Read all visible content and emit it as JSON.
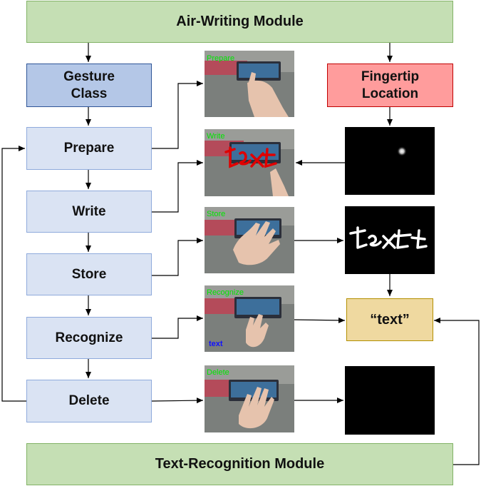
{
  "modules": {
    "air_writing": "Air-Writing Module",
    "text_recognition": "Text-Recognition Module"
  },
  "gesture_class": "Gesture\nClass",
  "fingertip_location": "Fingertip\nLocation",
  "states": [
    "Prepare",
    "Write",
    "Store",
    "Recognize",
    "Delete"
  ],
  "frame_labels": [
    "Prepare",
    "Write",
    "Store",
    "Recognize",
    "Delete"
  ],
  "recognize_overlay": "text",
  "write_overlay": "text",
  "stored_text": "text",
  "result": "“text”",
  "colors": {
    "frame_label": "#00e600",
    "overlay_blue": "#1010ff",
    "ink_red": "#e00000"
  }
}
